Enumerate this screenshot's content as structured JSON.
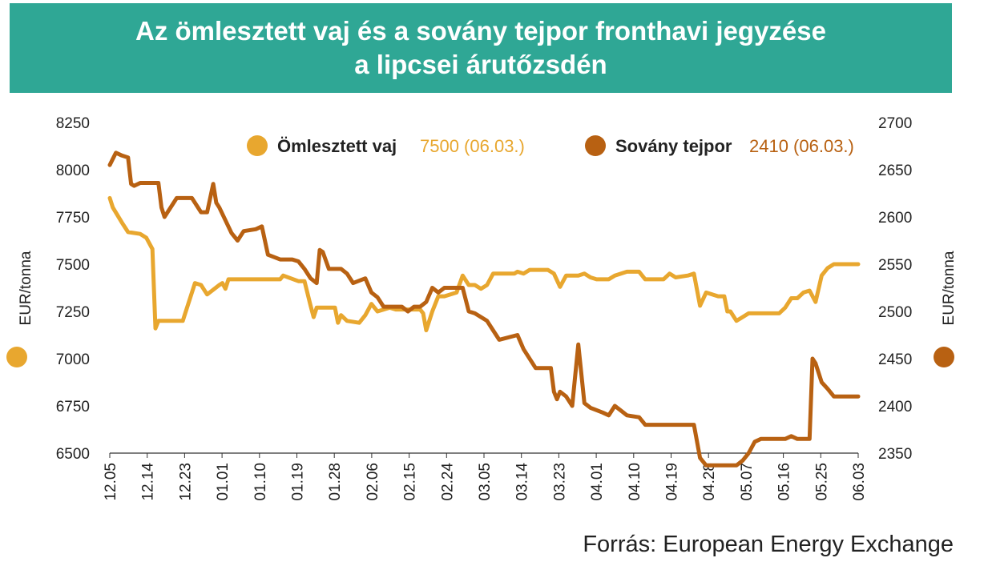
{
  "title_line1": "Az ömlesztett vaj és a sovány tejpor fronthavi jegyzése",
  "title_line2": "a lipcsei árutőzsdén",
  "source": "Forrás: European Energy Exchange",
  "colors": {
    "banner": "#2fa795",
    "butter": "#e8a72f",
    "powder": "#b86112"
  },
  "chart_data": {
    "type": "line",
    "grid": false,
    "legend_position": "top-center",
    "x_tick_labels": [
      "12.05",
      "12.14",
      "12.23",
      "01.01",
      "01.10",
      "01.19",
      "01.28",
      "02.06",
      "02.15",
      "02.24",
      "03.05",
      "03.14",
      "03.23",
      "04.01",
      "04.10",
      "04.19",
      "04.28",
      "05.07",
      "05.16",
      "05.25",
      "06.03"
    ],
    "y_left": {
      "label": "EUR/tonna",
      "ticks": [
        6500,
        6750,
        7000,
        7250,
        7500,
        7750,
        8000,
        8250
      ],
      "range": [
        6500,
        8250
      ]
    },
    "y_right": {
      "label": "EUR/tonna",
      "ticks": [
        2350,
        2400,
        2450,
        2500,
        2550,
        2600,
        2650,
        2700
      ],
      "range": [
        2350,
        2700
      ]
    },
    "series": [
      {
        "name": "Ömlesztett vaj",
        "annotation": "7500 (06.03.)",
        "axis": "left",
        "color": "#e8a72f",
        "points": [
          [
            0,
            7850
          ],
          [
            0.5,
            7800
          ],
          [
            2,
            7720
          ],
          [
            3,
            7670
          ],
          [
            5,
            7660
          ],
          [
            6,
            7640
          ],
          [
            7,
            7580
          ],
          [
            7.5,
            7160
          ],
          [
            8,
            7200
          ],
          [
            11,
            7200
          ],
          [
            12,
            7200
          ],
          [
            14,
            7400
          ],
          [
            15,
            7390
          ],
          [
            16,
            7340
          ],
          [
            18,
            7390
          ],
          [
            18.5,
            7400
          ],
          [
            19,
            7370
          ],
          [
            19.5,
            7420
          ],
          [
            22,
            7420
          ],
          [
            25,
            7420
          ],
          [
            26,
            7420
          ],
          [
            28,
            7420
          ],
          [
            28.5,
            7440
          ],
          [
            31,
            7410
          ],
          [
            32,
            7410
          ],
          [
            33,
            7280
          ],
          [
            33.5,
            7220
          ],
          [
            34,
            7270
          ],
          [
            37,
            7270
          ],
          [
            37.5,
            7190
          ],
          [
            38,
            7230
          ],
          [
            39,
            7200
          ],
          [
            41,
            7190
          ],
          [
            42,
            7230
          ],
          [
            43,
            7290
          ],
          [
            44,
            7250
          ],
          [
            46,
            7270
          ],
          [
            47,
            7260
          ],
          [
            51,
            7260
          ],
          [
            51.5,
            7240
          ],
          [
            52,
            7150
          ],
          [
            53,
            7250
          ],
          [
            54,
            7330
          ],
          [
            55,
            7330
          ],
          [
            57,
            7350
          ],
          [
            58,
            7440
          ],
          [
            59,
            7390
          ],
          [
            60,
            7390
          ],
          [
            61,
            7370
          ],
          [
            62,
            7390
          ],
          [
            63,
            7450
          ],
          [
            66,
            7450
          ],
          [
            66.5,
            7450
          ],
          [
            67,
            7460
          ],
          [
            68,
            7450
          ],
          [
            69,
            7470
          ],
          [
            72,
            7470
          ],
          [
            73,
            7450
          ],
          [
            74,
            7380
          ],
          [
            75,
            7440
          ],
          [
            77,
            7440
          ],
          [
            78,
            7450
          ],
          [
            79,
            7430
          ],
          [
            80,
            7420
          ],
          [
            82,
            7420
          ],
          [
            83,
            7440
          ],
          [
            85,
            7460
          ],
          [
            87,
            7460
          ],
          [
            88,
            7420
          ],
          [
            91,
            7420
          ],
          [
            92,
            7450
          ],
          [
            93,
            7430
          ],
          [
            95,
            7440
          ],
          [
            96,
            7450
          ],
          [
            97,
            7280
          ],
          [
            98,
            7350
          ],
          [
            100,
            7330
          ],
          [
            101,
            7330
          ],
          [
            101.5,
            7250
          ],
          [
            102,
            7250
          ],
          [
            103,
            7200
          ],
          [
            104,
            7220
          ],
          [
            105,
            7240
          ],
          [
            108,
            7240
          ],
          [
            110,
            7240
          ],
          [
            111,
            7270
          ],
          [
            112,
            7320
          ],
          [
            113,
            7320
          ],
          [
            114,
            7350
          ],
          [
            115,
            7360
          ],
          [
            116,
            7300
          ],
          [
            117,
            7440
          ],
          [
            118,
            7480
          ],
          [
            119,
            7500
          ],
          [
            122,
            7500
          ],
          [
            123,
            7500
          ]
        ]
      },
      {
        "name": "Sovány tejpor",
        "annotation": "2410 (06.03.)",
        "axis": "right",
        "color": "#b86112",
        "points": [
          [
            0,
            2655
          ],
          [
            1,
            2668
          ],
          [
            2,
            2665
          ],
          [
            3,
            2663
          ],
          [
            3.5,
            2635
          ],
          [
            4,
            2633
          ],
          [
            5,
            2636
          ],
          [
            8,
            2636
          ],
          [
            8.5,
            2610
          ],
          [
            9,
            2600
          ],
          [
            11,
            2620
          ],
          [
            13,
            2620
          ],
          [
            13.5,
            2620
          ],
          [
            15,
            2605
          ],
          [
            16,
            2605
          ],
          [
            17,
            2635
          ],
          [
            17.5,
            2615
          ],
          [
            18,
            2610
          ],
          [
            20,
            2583
          ],
          [
            21,
            2575
          ],
          [
            22,
            2585
          ],
          [
            24,
            2587
          ],
          [
            25,
            2590
          ],
          [
            26,
            2560
          ],
          [
            28,
            2555
          ],
          [
            30,
            2555
          ],
          [
            31,
            2553
          ],
          [
            32,
            2545
          ],
          [
            33,
            2535
          ],
          [
            34,
            2530
          ],
          [
            34.5,
            2565
          ],
          [
            35,
            2563
          ],
          [
            36,
            2545
          ],
          [
            38,
            2545
          ],
          [
            39,
            2540
          ],
          [
            40,
            2530
          ],
          [
            42,
            2535
          ],
          [
            43,
            2520
          ],
          [
            44,
            2515
          ],
          [
            45,
            2505
          ],
          [
            48,
            2505
          ],
          [
            49,
            2500
          ],
          [
            50,
            2505
          ],
          [
            51,
            2505
          ],
          [
            52,
            2510
          ],
          [
            53,
            2525
          ],
          [
            54,
            2520
          ],
          [
            55,
            2525
          ],
          [
            58,
            2525
          ],
          [
            59,
            2500
          ],
          [
            60,
            2498
          ],
          [
            62,
            2490
          ],
          [
            63,
            2480
          ],
          [
            64,
            2470
          ],
          [
            67,
            2475
          ],
          [
            68,
            2460
          ],
          [
            70,
            2440
          ],
          [
            72,
            2440
          ],
          [
            72.5,
            2440
          ],
          [
            73,
            2415
          ],
          [
            73.5,
            2407
          ],
          [
            74,
            2415
          ],
          [
            75,
            2410
          ],
          [
            76,
            2400
          ],
          [
            77,
            2465
          ],
          [
            78,
            2403
          ],
          [
            79,
            2398
          ],
          [
            81,
            2393
          ],
          [
            82,
            2390
          ],
          [
            83,
            2400
          ],
          [
            84,
            2395
          ],
          [
            85,
            2390
          ],
          [
            87,
            2388
          ],
          [
            88,
            2380
          ],
          [
            89,
            2380
          ],
          [
            94,
            2380
          ],
          [
            95,
            2380
          ],
          [
            95.5,
            2380
          ],
          [
            96,
            2380
          ],
          [
            97,
            2345
          ],
          [
            98,
            2337
          ],
          [
            101,
            2337
          ],
          [
            103,
            2337
          ],
          [
            104,
            2342
          ],
          [
            105,
            2350
          ],
          [
            106,
            2362
          ],
          [
            107,
            2365
          ],
          [
            110,
            2365
          ],
          [
            111,
            2365
          ],
          [
            112,
            2368
          ],
          [
            113,
            2365
          ],
          [
            114,
            2365
          ],
          [
            115,
            2365
          ],
          [
            115.5,
            2450
          ],
          [
            116,
            2445
          ],
          [
            117,
            2425
          ],
          [
            118,
            2418
          ],
          [
            119,
            2410
          ],
          [
            120,
            2410
          ],
          [
            121,
            2410
          ],
          [
            123,
            2410
          ]
        ]
      }
    ]
  }
}
